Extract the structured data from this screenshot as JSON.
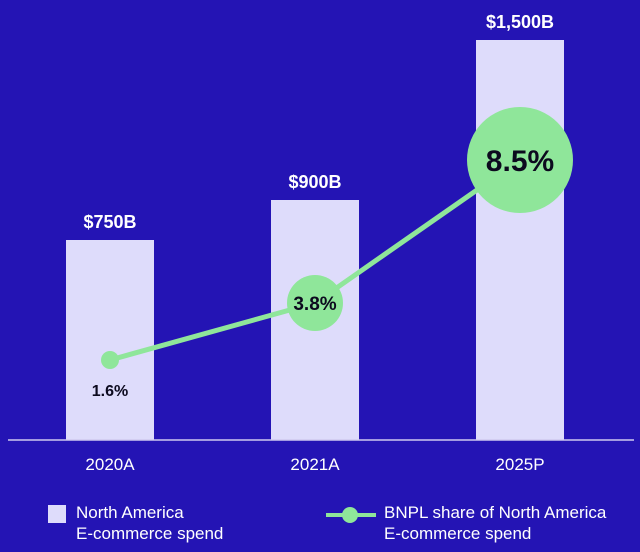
{
  "colors": {
    "background": "#2414b4",
    "bar": "#dedcfb",
    "line": "#8fe69a",
    "axis": "#cfc9f0"
  },
  "chart_data": {
    "type": "bar",
    "categories": [
      "2020A",
      "2021A",
      "2025P"
    ],
    "series": [
      {
        "name": "North America E-commerce spend",
        "type": "bar",
        "values": [
          750,
          900,
          1500
        ],
        "value_labels": [
          "$750B",
          "$900B",
          "$1,500B"
        ]
      },
      {
        "name": "BNPL share of North America E-commerce spend",
        "type": "line",
        "values": [
          1.6,
          3.8,
          8.5
        ],
        "value_labels": [
          "1.6%",
          "3.8%",
          "8.5%"
        ]
      }
    ],
    "ylim": [
      0,
      1500
    ],
    "grid": false,
    "legend_position": "bottom"
  },
  "legend": {
    "bar_line1": "North America",
    "bar_line2": "E-commerce spend",
    "line_line1": "BNPL share of North America",
    "line_line2": "E-commerce spend"
  }
}
